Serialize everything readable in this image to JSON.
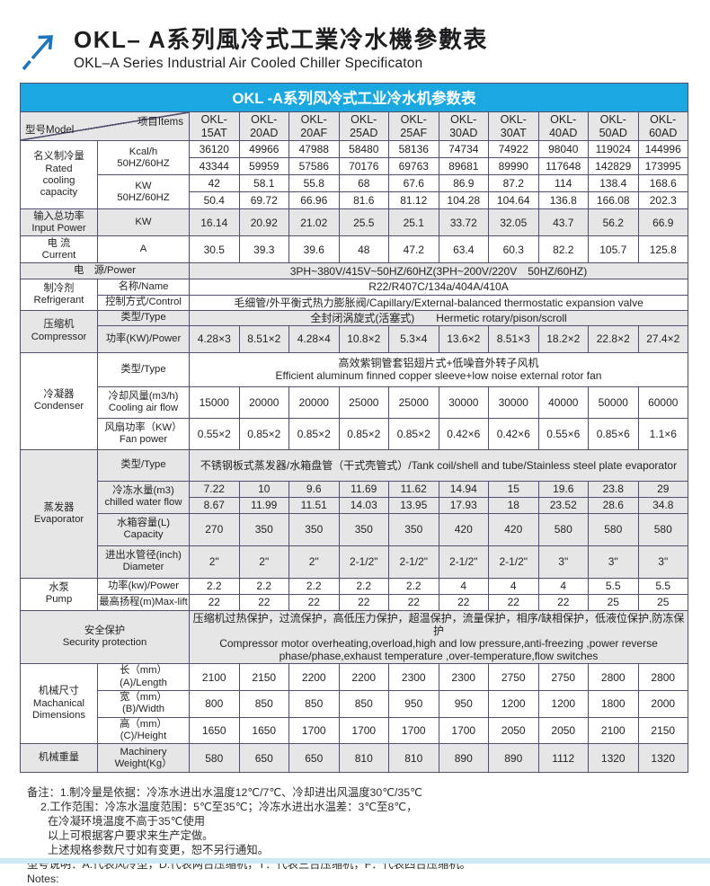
{
  "header": {
    "title_zh": "OKL– A系列風冷式工業冷水機參數表",
    "title_en": "OKL–A Series Industrial Air Cooled Chiller Specificaton",
    "logo_icon": "arrow-up-right-icon"
  },
  "colors": {
    "accent_blue": "#1ba7e0",
    "arrow_blue": "#1c75bb",
    "shade_gray": "#e6e6e6",
    "border": "#4f4f6e",
    "footer_strip": "#cde9f8"
  },
  "table": {
    "caption": "OKL -A系列风冷式工业冷水机参数表",
    "corner": {
      "model_label": "型号Model",
      "items_label": "项目Items"
    },
    "models": [
      "OKL-15AT",
      "OKL-20AD",
      "OKL-20AF",
      "OKL-25AD",
      "OKL-25AF",
      "OKL-30AD",
      "OKL-30AT",
      "OKL-40AD",
      "OKL-50AD",
      "OKL-60AD"
    ],
    "rows": [
      {
        "shade": true,
        "cells": [
          {
            "corner": true,
            "colspan": 2,
            "name": "corner-header"
          },
          {
            "text": "OKL-\n15AT",
            "name": "col-header-model"
          },
          {
            "text": "OKL-\n20AD",
            "name": "col-header-model"
          },
          {
            "text": "OKL-\n20AF",
            "name": "col-header-model"
          },
          {
            "text": "OKL-\n25AD",
            "name": "col-header-model"
          },
          {
            "text": "OKL-\n25AF",
            "name": "col-header-model"
          },
          {
            "text": "OKL-\n30AD",
            "name": "col-header-model"
          },
          {
            "text": "OKL-\n30AT",
            "name": "col-header-model"
          },
          {
            "text": "OKL-\n40AD",
            "name": "col-header-model"
          },
          {
            "text": "OKL-\n50AD",
            "name": "col-header-model"
          },
          {
            "text": "OKL-\n60AD",
            "name": "col-header-model"
          }
        ]
      },
      {
        "cells": [
          {
            "text": "名义制冷量\nRated\ncooling\ncapacity",
            "rowspan": 4,
            "name": "row-label"
          },
          {
            "text": "Kcal/h\n50HZ/60HZ",
            "rowspan": 2,
            "name": "item-label"
          },
          {
            "text": "36120"
          },
          {
            "text": "49966"
          },
          {
            "text": "47988"
          },
          {
            "text": "58480"
          },
          {
            "text": "58136"
          },
          {
            "text": "74734"
          },
          {
            "text": "74922"
          },
          {
            "text": "98040"
          },
          {
            "text": "119024"
          },
          {
            "text": "144996"
          }
        ]
      },
      {
        "cells": [
          {
            "text": "43344"
          },
          {
            "text": "59959"
          },
          {
            "text": "57586"
          },
          {
            "text": "70176"
          },
          {
            "text": "69763"
          },
          {
            "text": "89681"
          },
          {
            "text": "89990"
          },
          {
            "text": "117648"
          },
          {
            "text": "142829"
          },
          {
            "text": "173995"
          }
        ]
      },
      {
        "cells": [
          {
            "text": "KW\n50HZ/60HZ",
            "rowspan": 2,
            "name": "item-label"
          },
          {
            "text": "42"
          },
          {
            "text": "58.1"
          },
          {
            "text": "55.8"
          },
          {
            "text": "68"
          },
          {
            "text": "67.6"
          },
          {
            "text": "86.9"
          },
          {
            "text": "87.2"
          },
          {
            "text": "114"
          },
          {
            "text": "138.4"
          },
          {
            "text": "168.6"
          }
        ]
      },
      {
        "cells": [
          {
            "text": "50.4"
          },
          {
            "text": "69.72"
          },
          {
            "text": "66.96"
          },
          {
            "text": "81.6"
          },
          {
            "text": "81.12"
          },
          {
            "text": "104.28"
          },
          {
            "text": "104.64"
          },
          {
            "text": "136.8"
          },
          {
            "text": "166.08"
          },
          {
            "text": "202.3"
          }
        ]
      },
      {
        "shade": true,
        "cells": [
          {
            "text": "输入总功率\nInput Power",
            "name": "row-label"
          },
          {
            "text": "KW",
            "name": "item-label"
          },
          {
            "text": "16.14"
          },
          {
            "text": "20.92"
          },
          {
            "text": "21.02"
          },
          {
            "text": "25.5"
          },
          {
            "text": "25.1"
          },
          {
            "text": "33.72"
          },
          {
            "text": "32.05"
          },
          {
            "text": "43.7"
          },
          {
            "text": "56.2"
          },
          {
            "text": "66.9"
          }
        ]
      },
      {
        "cells": [
          {
            "text": "电 流\nCurrent",
            "name": "row-label"
          },
          {
            "text": "A",
            "name": "item-label"
          },
          {
            "text": "30.5"
          },
          {
            "text": "39.3"
          },
          {
            "text": "39.6"
          },
          {
            "text": "48"
          },
          {
            "text": "47.2"
          },
          {
            "text": "63.4"
          },
          {
            "text": "60.3"
          },
          {
            "text": "82.2"
          },
          {
            "text": "105.7"
          },
          {
            "text": "125.8"
          }
        ]
      },
      {
        "shade": true,
        "cells": [
          {
            "text": "电　源/Power",
            "colspan": 2,
            "name": "row-label"
          },
          {
            "text": "3PH~380V/415V~50HZ/60HZ(3PH~200V/220V　50HZ/60HZ)",
            "colspan": 10,
            "name": "span-value"
          }
        ]
      },
      {
        "cells": [
          {
            "text": "制冷剂\nRefrigerant",
            "rowspan": 2,
            "name": "row-label"
          },
          {
            "text": "名称/Name",
            "name": "item-label"
          },
          {
            "text": "R22/R407C/134a/404A/410A",
            "colspan": 10,
            "name": "span-value"
          }
        ]
      },
      {
        "cells": [
          {
            "text": "控制方式/Control",
            "name": "item-label"
          },
          {
            "text": "毛细管/外平衡式热力膨胀阀/Capillary/External-balanced thermostatic expansion valve",
            "colspan": 10,
            "name": "span-value"
          }
        ]
      },
      {
        "shade": true,
        "cells": [
          {
            "text": "压缩机\nCompressor",
            "rowspan": 2,
            "name": "row-label"
          },
          {
            "text": "类型/Type",
            "name": "item-label"
          },
          {
            "text": "全封闭涡旋式(活塞式)　　Hermetic rotary/pison/scroll",
            "colspan": 10,
            "name": "span-value"
          }
        ]
      },
      {
        "shade": true,
        "cells": [
          {
            "text": "功率(KW)/Power",
            "name": "item-label"
          },
          {
            "text": "4.28×3"
          },
          {
            "text": "8.51×2"
          },
          {
            "text": "4.28×4"
          },
          {
            "text": "10.8×2"
          },
          {
            "text": "5.3×4"
          },
          {
            "text": "13.6×2"
          },
          {
            "text": "8.51×3"
          },
          {
            "text": "18.2×2"
          },
          {
            "text": "22.8×2"
          },
          {
            "text": "27.4×2"
          }
        ]
      },
      {
        "cells": [
          {
            "text": "冷凝器\nCondenser",
            "rowspan": 3,
            "name": "row-label"
          },
          {
            "text": "类型/Type",
            "name": "item-label"
          },
          {
            "text": "高效紫铜管套铝翅片式+低噪音外转子风机\nEfficient aluminum finned copper sleeve+low noise external rotor fan",
            "colspan": 10,
            "name": "span-value"
          }
        ]
      },
      {
        "cells": [
          {
            "text": "冷却风量(m3/h)\nCooling air flow",
            "name": "item-label"
          },
          {
            "text": "15000"
          },
          {
            "text": "20000"
          },
          {
            "text": "20000"
          },
          {
            "text": "25000"
          },
          {
            "text": "25000"
          },
          {
            "text": "30000"
          },
          {
            "text": "30000"
          },
          {
            "text": "40000"
          },
          {
            "text": "50000"
          },
          {
            "text": "60000"
          }
        ]
      },
      {
        "cells": [
          {
            "text": "风扇功率（KW）\nFan power",
            "name": "item-label"
          },
          {
            "text": "0.55×2"
          },
          {
            "text": "0.85×2"
          },
          {
            "text": "0.85×2"
          },
          {
            "text": "0.85×2"
          },
          {
            "text": "0.85×2"
          },
          {
            "text": "0.42×6"
          },
          {
            "text": "0.42×6"
          },
          {
            "text": "0.55×6"
          },
          {
            "text": "0.85×6"
          },
          {
            "text": "1.1×6"
          }
        ]
      },
      {
        "shade": true,
        "cells": [
          {
            "text": "蒸发器\nEvaporator",
            "rowspan": 5,
            "name": "row-label"
          },
          {
            "text": "类型/Type",
            "name": "item-label"
          },
          {
            "text": "不锈钢板式蒸发器/水箱盘管（干式壳管式）/Tank coil/shell and tube/Stainless steel plate evaporator",
            "colspan": 10,
            "name": "span-value"
          }
        ]
      },
      {
        "shade": true,
        "cells": [
          {
            "text": "冷冻水量(m3)\nchilled water flow",
            "rowspan": 2,
            "name": "item-label"
          },
          {
            "text": "7.22"
          },
          {
            "text": "10"
          },
          {
            "text": "9.6"
          },
          {
            "text": "11.69"
          },
          {
            "text": "11.62"
          },
          {
            "text": "14.94"
          },
          {
            "text": "15"
          },
          {
            "text": "19.6"
          },
          {
            "text": "23.8"
          },
          {
            "text": "29"
          }
        ]
      },
      {
        "shade": true,
        "cells": [
          {
            "text": "8.67"
          },
          {
            "text": "11.99"
          },
          {
            "text": "11.51"
          },
          {
            "text": "14.03"
          },
          {
            "text": "13.95"
          },
          {
            "text": "17.93"
          },
          {
            "text": "18"
          },
          {
            "text": "23.52"
          },
          {
            "text": "28.6"
          },
          {
            "text": "34.8"
          }
        ]
      },
      {
        "shade": true,
        "cells": [
          {
            "text": "水箱容量(L)\nCapacity",
            "name": "item-label"
          },
          {
            "text": "270"
          },
          {
            "text": "350"
          },
          {
            "text": "350"
          },
          {
            "text": "350"
          },
          {
            "text": "350"
          },
          {
            "text": "420"
          },
          {
            "text": "420"
          },
          {
            "text": "580"
          },
          {
            "text": "580"
          },
          {
            "text": "580"
          }
        ]
      },
      {
        "shade": true,
        "cells": [
          {
            "text": "进出水管径(inch)\nDiameter",
            "name": "item-label"
          },
          {
            "text": "2\""
          },
          {
            "text": "2\""
          },
          {
            "text": "2\""
          },
          {
            "text": "2-1/2\""
          },
          {
            "text": "2-1/2\""
          },
          {
            "text": "2-1/2\""
          },
          {
            "text": "2-1/2\""
          },
          {
            "text": "3\""
          },
          {
            "text": "3\""
          },
          {
            "text": "3\""
          }
        ]
      },
      {
        "cells": [
          {
            "text": "水泵\nPump",
            "rowspan": 2,
            "name": "row-label"
          },
          {
            "text": "功率(kw)/Power",
            "name": "item-label"
          },
          {
            "text": "2.2"
          },
          {
            "text": "2.2"
          },
          {
            "text": "2.2"
          },
          {
            "text": "2.2"
          },
          {
            "text": "2.2"
          },
          {
            "text": "4"
          },
          {
            "text": "4"
          },
          {
            "text": "4"
          },
          {
            "text": "5.5"
          },
          {
            "text": "5.5"
          }
        ]
      },
      {
        "cells": [
          {
            "text": "最高扬程(m)Max-lift",
            "name": "item-label"
          },
          {
            "text": "22"
          },
          {
            "text": "22"
          },
          {
            "text": "22"
          },
          {
            "text": "22"
          },
          {
            "text": "22"
          },
          {
            "text": "22"
          },
          {
            "text": "22"
          },
          {
            "text": "22"
          },
          {
            "text": "25"
          },
          {
            "text": "25"
          }
        ]
      },
      {
        "shade": true,
        "cells": [
          {
            "text": "安全保护\nSecurity protection",
            "colspan": 2,
            "name": "row-label"
          },
          {
            "text": "压缩机过热保护，过流保护，高低压力保护，超温保护，流量保护，相序/缺相保护，低液位保护,防冻保护\nCompressor motor overheating,overload,high and low pressure,anti-freezing ,power reverse\nphase/phase,exhaust temperature ,over-temperature,flow switches",
            "colspan": 10,
            "name": "span-value"
          }
        ]
      },
      {
        "cells": [
          {
            "text": "机械尺寸\nMachanical\nDimensions",
            "rowspan": 3,
            "name": "row-label"
          },
          {
            "text": "长（mm）(A)/Length",
            "name": "item-label"
          },
          {
            "text": "2100"
          },
          {
            "text": "2150"
          },
          {
            "text": "2200"
          },
          {
            "text": "2200"
          },
          {
            "text": "2300"
          },
          {
            "text": "2300"
          },
          {
            "text": "2750"
          },
          {
            "text": "2750"
          },
          {
            "text": "2800"
          },
          {
            "text": "2800"
          }
        ]
      },
      {
        "cells": [
          {
            "text": "宽（mm）(B)/Width",
            "name": "item-label"
          },
          {
            "text": "800"
          },
          {
            "text": "850"
          },
          {
            "text": "850"
          },
          {
            "text": "850"
          },
          {
            "text": "950"
          },
          {
            "text": "950"
          },
          {
            "text": "1200"
          },
          {
            "text": "1200"
          },
          {
            "text": "1800"
          },
          {
            "text": "2000"
          }
        ]
      },
      {
        "cells": [
          {
            "text": "高（mm）(C)/Height",
            "name": "item-label"
          },
          {
            "text": "1650"
          },
          {
            "text": "1650"
          },
          {
            "text": "1700"
          },
          {
            "text": "1700"
          },
          {
            "text": "1700"
          },
          {
            "text": "1700"
          },
          {
            "text": "2050"
          },
          {
            "text": "2050"
          },
          {
            "text": "2100"
          },
          {
            "text": "2150"
          }
        ]
      },
      {
        "shade": true,
        "cells": [
          {
            "text": "机械重量",
            "name": "row-label"
          },
          {
            "text": "Machinery\nWeight(Kg）",
            "name": "item-label"
          },
          {
            "text": "580"
          },
          {
            "text": "650"
          },
          {
            "text": "650"
          },
          {
            "text": "810"
          },
          {
            "text": "810"
          },
          {
            "text": "890"
          },
          {
            "text": "890"
          },
          {
            "text": "1112"
          },
          {
            "text": "1320"
          },
          {
            "text": "1320"
          }
        ]
      }
    ]
  },
  "notes": {
    "lines": [
      "备注：1.制冷量是依据：冷冻水进出水温度12℃/7℃、冷却进出风温度30℃/35℃",
      "2.工作范围：冷冻水温度范围：5℃至35℃；冷冻水进出水温差：3℃至8℃，",
      "在冷凝环境温度不高于35℃使用",
      "以上可根据客户要求来生产定做。",
      "上述规格参数尺寸如有变更，恕不另行通知。",
      "型号说明：A:代表风冷型，D:代表两台压缩机，T：代表三台压缩机，F：代表四台压缩机。",
      "Notes:"
    ]
  }
}
